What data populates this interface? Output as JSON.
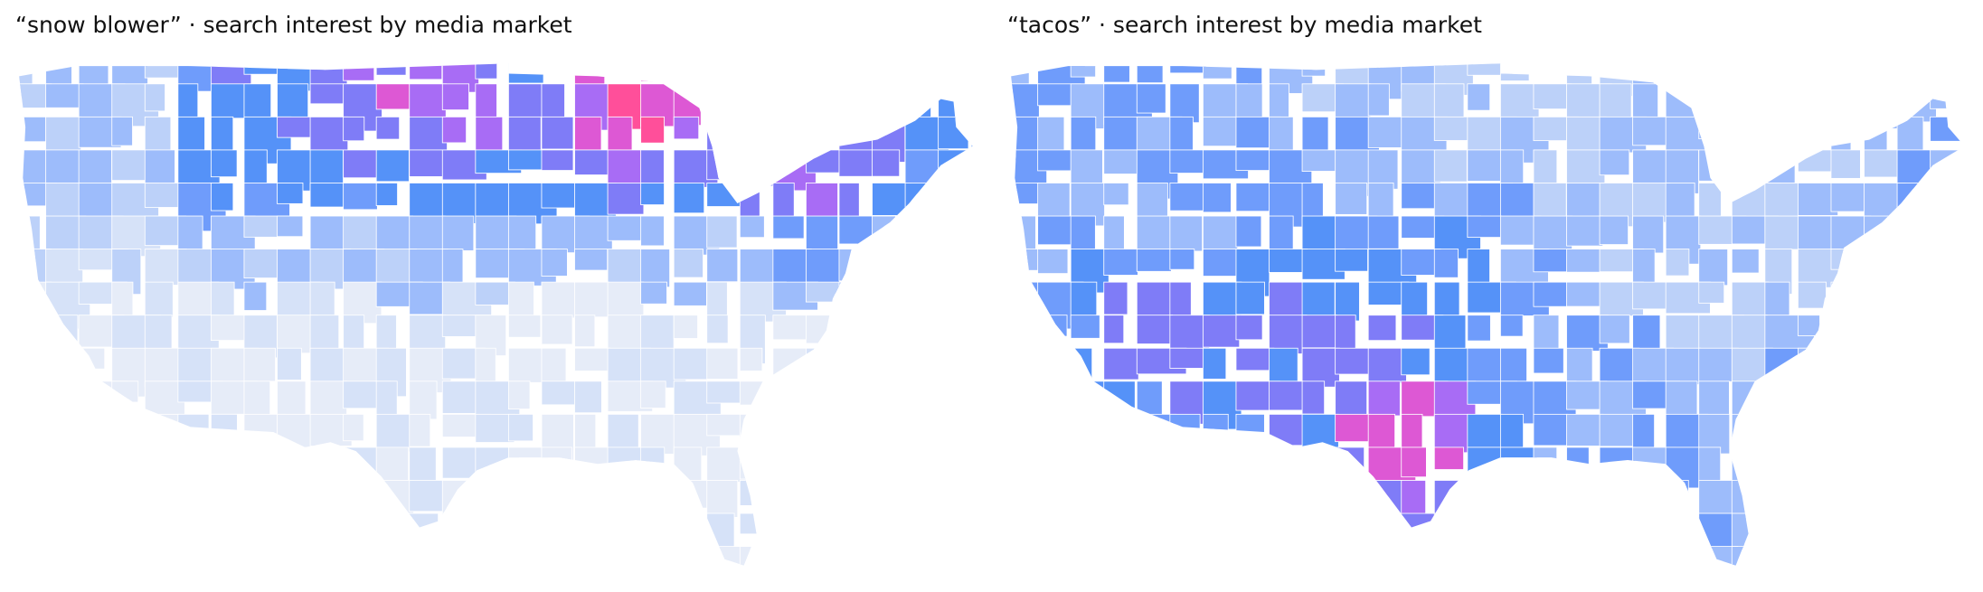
{
  "maps": [
    {
      "title": "“snow blower” · search interest by media market",
      "field": "north",
      "color_scale": [
        "#e6ecf8",
        "#d6e2f8",
        "#bcd1f9",
        "#9dbcfb",
        "#6f9cfb",
        "#5592f8",
        "#7f7cf7",
        "#a86cf5",
        "#dd58d4",
        "#ff4f9a"
      ]
    },
    {
      "title": "“tacos” · search interest by media market",
      "field": "south",
      "color_scale": [
        "#e6ecf8",
        "#d6e2f8",
        "#bcd1f9",
        "#9dbcfb",
        "#6f9cfb",
        "#5592f8",
        "#7f7cf7",
        "#a86cf5",
        "#dd58d4",
        "#ff4f9a"
      ]
    }
  ]
}
